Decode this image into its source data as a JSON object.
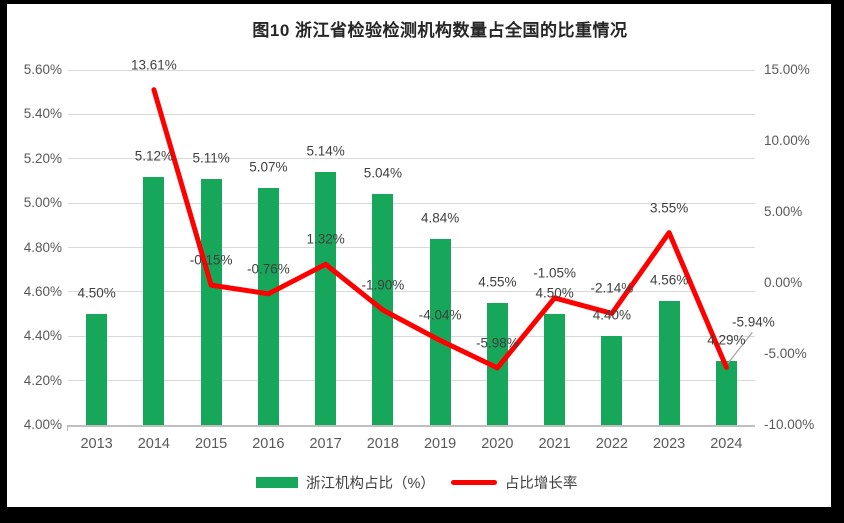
{
  "window": {
    "frame_color": "#000000",
    "panel_color": "#ffffff"
  },
  "chart_data": {
    "type": "combo-bar-line",
    "title": "图10  浙江省检验检测机构数量占全国的比重情况",
    "categories": [
      "2013",
      "2014",
      "2015",
      "2016",
      "2017",
      "2018",
      "2019",
      "2020",
      "2021",
      "2022",
      "2023",
      "2024"
    ],
    "series": [
      {
        "name": "浙江机构占比（%）",
        "type": "bar",
        "axis": "left",
        "color": "#17a75a",
        "values": [
          4.5,
          5.12,
          5.11,
          5.07,
          5.14,
          5.04,
          4.84,
          4.55,
          4.5,
          4.4,
          4.56,
          4.29
        ],
        "labels": [
          "4.50%",
          "5.12%",
          "5.11%",
          "5.07%",
          "5.14%",
          "5.04%",
          "4.84%",
          "4.55%",
          "4.50%",
          "4.40%",
          "4.56%",
          "4.29%"
        ]
      },
      {
        "name": "占比增长率",
        "type": "line",
        "axis": "right",
        "color": "#fe0000",
        "values": [
          null,
          13.61,
          -0.15,
          -0.76,
          1.32,
          -1.9,
          -4.04,
          -5.98,
          -1.05,
          -2.14,
          3.55,
          -5.94
        ],
        "labels": [
          null,
          "13.61%",
          "-0.15%",
          "-0.76%",
          "1.32%",
          "-1.90%",
          "-4.04%",
          "-5.98%",
          "-1.05%",
          "-2.14%",
          "3.55%",
          "-5.94%"
        ]
      }
    ],
    "left_axis": {
      "min": 4.0,
      "max": 5.6,
      "tick_values": [
        5.6,
        5.4,
        5.2,
        5.0,
        4.8,
        4.6,
        4.4,
        4.2,
        4.0
      ],
      "ticks": [
        "5.60%",
        "5.40%",
        "5.20%",
        "5.00%",
        "4.80%",
        "4.60%",
        "4.40%",
        "4.20%",
        "4.00%"
      ]
    },
    "right_axis": {
      "min": -10.0,
      "max": 15.0,
      "tick_values": [
        15,
        10,
        5,
        0,
        -5,
        -10
      ],
      "ticks": [
        "15.00%",
        "10.00%",
        "5.00%",
        "0.00%",
        "-5.00%",
        "-10.00%"
      ]
    },
    "grid": true,
    "legend_position": "bottom",
    "callout": {
      "series": 1,
      "index": 11,
      "leader_color": "#a6a6a6"
    }
  }
}
